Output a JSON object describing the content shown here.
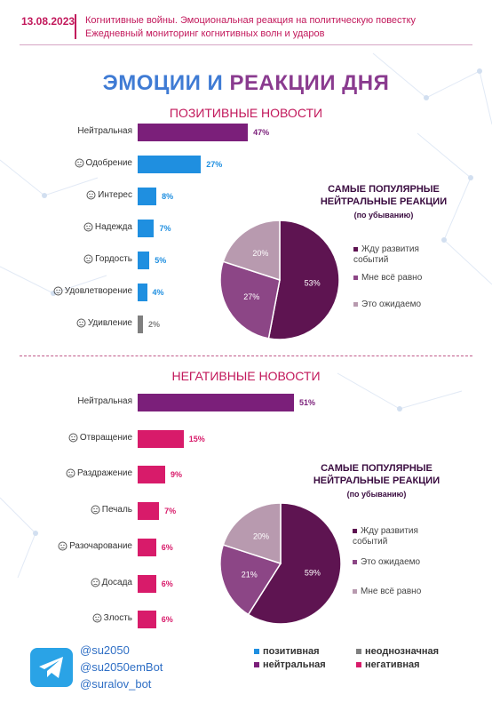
{
  "header": {
    "date": "13.08.2023",
    "line1": "Когнитивные войны. Эмоциональная реакция на политическую повестку",
    "line2": "Ежедневный мониторинг когнитивных волн и ударов"
  },
  "title_part1": "ЭМОЦИИ И ",
  "title_part2": "РЕАКЦИИ ДНЯ",
  "colors": {
    "neutral": "#7b1f7a",
    "positive": "#1f8fe0",
    "ambiguous": "#7f7f7f",
    "negative": "#d81b6a",
    "pie_dark": "#5e1451",
    "pie_mid": "#8c4686",
    "pie_light": "#b89aaf"
  },
  "chart_data": [
    {
      "type": "bar",
      "title": "ПОЗИТИВНЫЕ НОВОСТИ",
      "categories": [
        "Нейтральная",
        "Одобрение",
        "Интерес",
        "Надежда",
        "Гордость",
        "Удовлетворение",
        "Удивление"
      ],
      "values": [
        47,
        27,
        8,
        7,
        5,
        4,
        2
      ],
      "value_labels": [
        "47%",
        "27%",
        "8%",
        "7%",
        "5%",
        "4%",
        "2%"
      ],
      "bar_types": [
        "neutral",
        "positive",
        "positive",
        "positive",
        "positive",
        "positive",
        "ambiguous"
      ],
      "icons": [
        "",
        "smile-icon",
        "question-icon",
        "hope-icon",
        "trophy-icon",
        "smile-icon",
        "surprise-icon"
      ]
    },
    {
      "type": "pie",
      "title": "САМЫЕ ПОПУЛЯРНЫЕ НЕЙТРАЛЬНЫЕ РЕАКЦИИ",
      "subtitle": "(по убыванию)",
      "labels": [
        "Жду развития событий",
        "Мне всё равно",
        "Это ожидаемо"
      ],
      "values": [
        53,
        27,
        20
      ],
      "value_labels": [
        "53%",
        "27%",
        "20%"
      ],
      "slice_colors": [
        "pie_dark",
        "pie_mid",
        "pie_light"
      ]
    },
    {
      "type": "bar",
      "title": "НЕГАТИВНЫЕ НОВОСТИ",
      "categories": [
        "Нейтральная",
        "Отвращение",
        "Раздражение",
        "Печаль",
        "Разочарование",
        "Досада",
        "Злость"
      ],
      "values": [
        51,
        15,
        9,
        7,
        6,
        6,
        6
      ],
      "value_labels": [
        "51%",
        "15%",
        "9%",
        "7%",
        "6%",
        "6%",
        "6%"
      ],
      "bar_types": [
        "neutral",
        "negative",
        "negative",
        "negative",
        "negative",
        "negative",
        "negative"
      ],
      "icons": [
        "",
        "disgust-icon",
        "annoyed-icon",
        "sad-icon",
        "disappointed-icon",
        "frown-icon",
        "angry-icon"
      ]
    },
    {
      "type": "pie",
      "title": "САМЫЕ ПОПУЛЯРНЫЕ НЕЙТРАЛЬНЫЕ РЕАКЦИИ",
      "subtitle": "(по убыванию)",
      "labels": [
        "Жду развития событий",
        "Это ожидаемо",
        "Мне всё равно"
      ],
      "values": [
        59,
        21,
        20
      ],
      "value_labels": [
        "59%",
        "21%",
        "20%"
      ],
      "slice_colors": [
        "pie_dark",
        "pie_mid",
        "pie_light"
      ]
    }
  ],
  "footer": {
    "handles": [
      "@su2050",
      "@su2050emBot",
      "@suralov_bot"
    ],
    "categories": [
      {
        "label": "позитивная",
        "type": "positive"
      },
      {
        "label": "неоднозначная",
        "type": "ambiguous"
      },
      {
        "label": "нейтральная",
        "type": "neutral"
      },
      {
        "label": "негативная",
        "type": "negative"
      }
    ]
  }
}
